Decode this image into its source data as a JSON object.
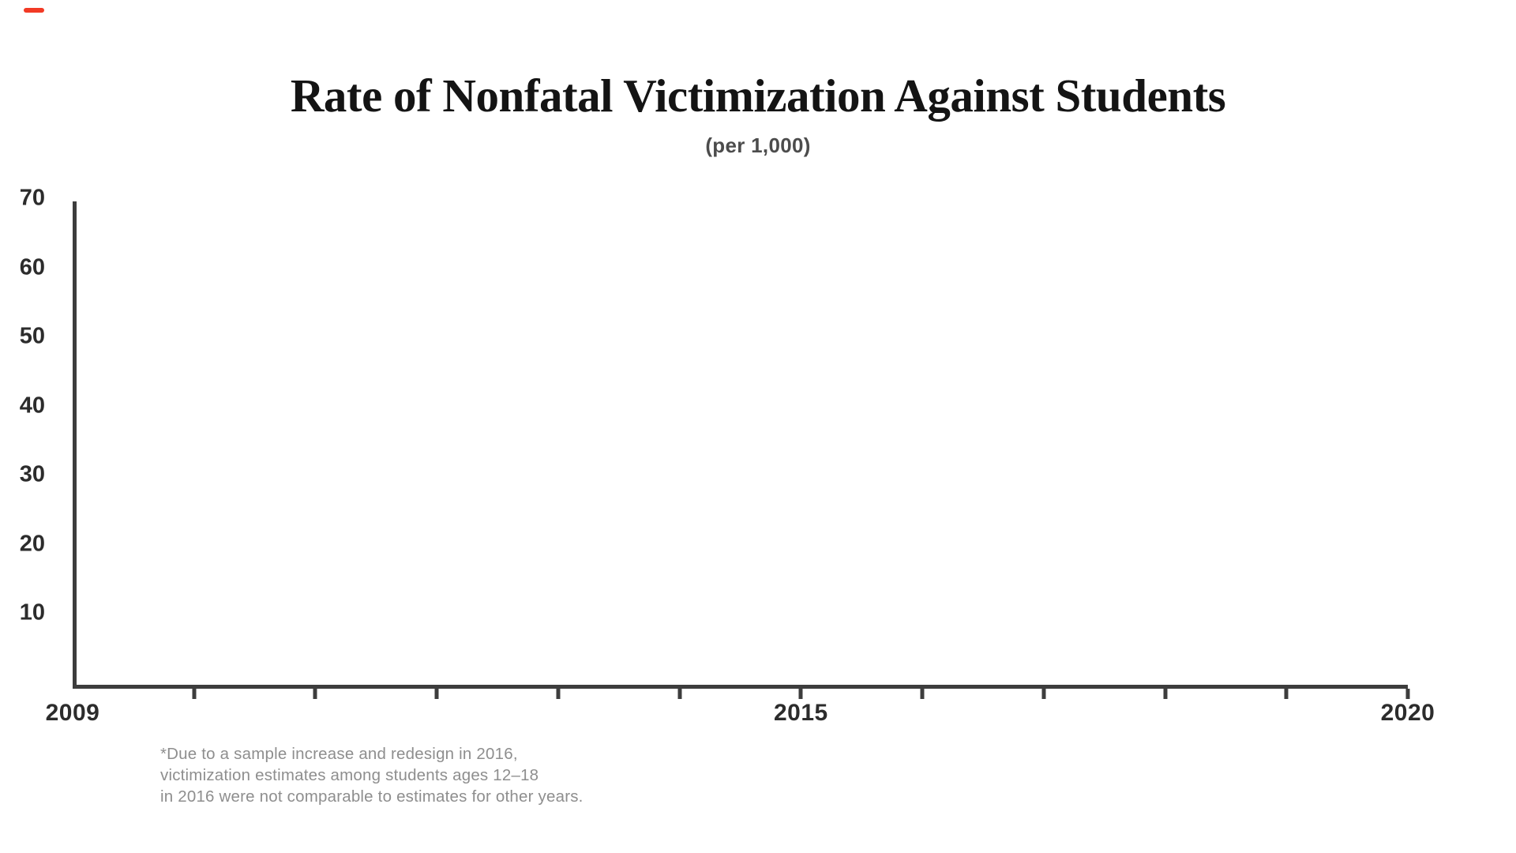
{
  "progress_marker": {
    "color": "#f23a25"
  },
  "chart_data": {
    "type": "line",
    "title": "Rate of Nonfatal Victimization Against Students",
    "subtitle": "(per 1,000)",
    "xlabel": "",
    "ylabel": "",
    "series": [],
    "x_axis": {
      "min_year": 2009,
      "max_year": 2020,
      "tick_years": [
        2009,
        2010,
        2011,
        2012,
        2013,
        2014,
        2015,
        2016,
        2017,
        2018,
        2019,
        2020
      ],
      "labeled_ticks": [
        "2009",
        "2015",
        "2020"
      ]
    },
    "y_axis": {
      "min": 0,
      "max": 70,
      "tick_labels": [
        "70",
        "60",
        "50",
        "40",
        "30",
        "20",
        "10"
      ],
      "grid": false
    },
    "legend": "none",
    "footnote_lines": [
      "*Due to a sample increase and redesign in 2016,",
      "victimization estimates among students ages 12–18",
      "in 2016 were not comparable to estimates for other years."
    ]
  },
  "colors": {
    "background": "#ffffff",
    "title": "#141414",
    "subtitle": "#4c4c4c",
    "axis": "#3d3d3d",
    "axis_labels": "#2c2c2c",
    "footnote": "#8e8e8e",
    "progress_marker": "#f23a25"
  }
}
